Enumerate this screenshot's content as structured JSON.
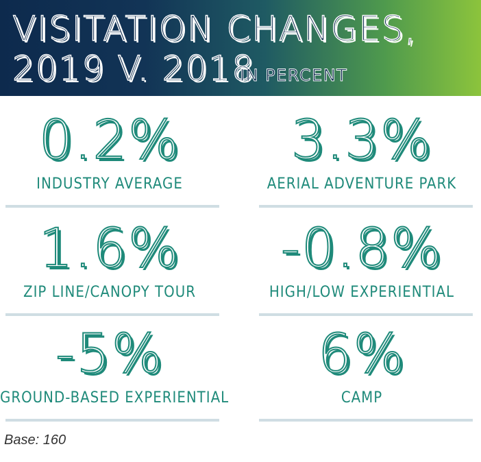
{
  "header": {
    "title_line1": "VISITATION CHANGES,",
    "title_line2": "2019 V. 2018",
    "subtitle": "IN PERCENT"
  },
  "stats": [
    {
      "value": "0.2%",
      "label": "INDUSTRY AVERAGE"
    },
    {
      "value": "3.3%",
      "label": "AERIAL ADVENTURE PARK"
    },
    {
      "value": "1.6%",
      "label": "ZIP LINE/CANOPY TOUR"
    },
    {
      "value": "-0.8%",
      "label": "HIGH/LOW EXPERIENTIAL"
    },
    {
      "value": "-5%",
      "label": "GROUND-BASED EXPERIENTIAL"
    },
    {
      "value": "6%",
      "label": "CAMP"
    }
  ],
  "footnote": "Base: 160",
  "colors": {
    "accent": "#1f8a7a",
    "banner_dark": "#0d2a4d",
    "banner_light": "#8cc43c",
    "divider": "#cfdde3"
  }
}
